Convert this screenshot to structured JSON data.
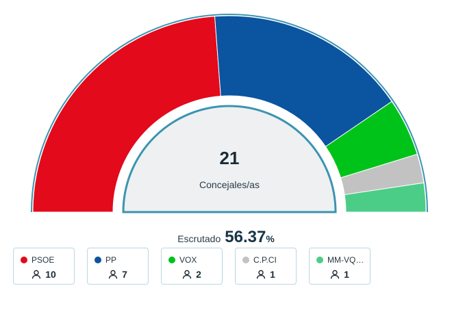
{
  "chart_data": {
    "type": "hemicycle",
    "total_seats": "21",
    "total_label": "Concejales/as",
    "parties": [
      {
        "name": "PSOE",
        "seats": 10,
        "color": "#e20a1b"
      },
      {
        "name": "PP",
        "seats": 7,
        "color": "#0b54a0"
      },
      {
        "name": "VOX",
        "seats": 2,
        "color": "#00c31a"
      },
      {
        "name": "C.P.CI",
        "seats": 1,
        "color": "#c2c2c2"
      },
      {
        "name": "MM-VQ CIE...",
        "seats": 1,
        "color": "#4ccd87"
      }
    ]
  },
  "scrutiny": {
    "label": "Escrutado",
    "value": "56.37",
    "unit": "%"
  },
  "colors": {
    "outline": "#3b94b0",
    "center_fill": "#eef0f2",
    "card_border": "#b9d7e3"
  },
  "icons": {
    "seat_icon": "person-icon"
  }
}
